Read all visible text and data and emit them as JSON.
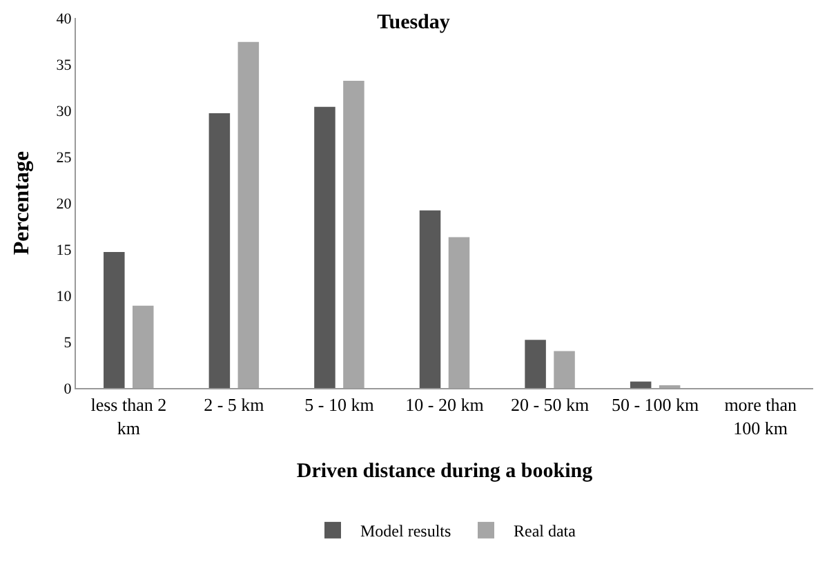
{
  "chart_data": {
    "type": "bar",
    "title": "Tuesday",
    "xlabel": "Driven distance during a booking",
    "ylabel": "Percentage",
    "categories": [
      "less than 2 km",
      "2 - 5 km",
      "5 - 10 km",
      "10 - 20 km",
      "20 - 50 km",
      "50 - 100 km",
      "more than 100 km"
    ],
    "series": [
      {
        "name": "Model results",
        "color": "#595959",
        "values": [
          14.7,
          29.7,
          30.4,
          19.2,
          5.2,
          0.7,
          0
        ]
      },
      {
        "name": "Real data",
        "color": "#a6a6a6",
        "values": [
          8.9,
          37.4,
          33.2,
          16.3,
          4.0,
          0.3,
          0
        ]
      }
    ],
    "ylim": [
      0,
      40
    ],
    "yticks": [
      0,
      5,
      10,
      15,
      20,
      25,
      30,
      35,
      40
    ],
    "grid": false,
    "legend": "bottom"
  }
}
